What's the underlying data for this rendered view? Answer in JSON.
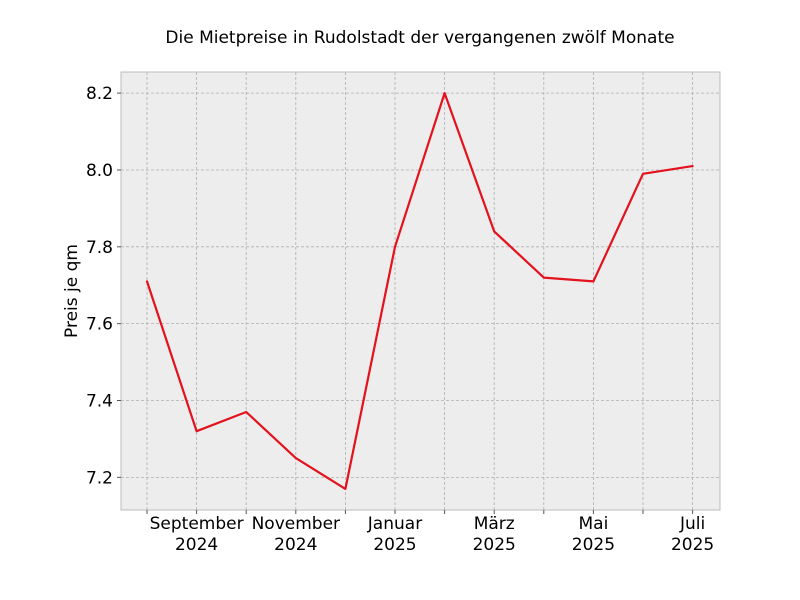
{
  "chart_data": {
    "type": "line",
    "title": "Die Mietpreise in Rudolstadt der vergangenen zwölf Monate",
    "xlabel": "",
    "ylabel": "Preis je qm",
    "x": [
      "2024-08",
      "2024-09",
      "2024-10",
      "2024-11",
      "2024-12",
      "2025-01",
      "2025-02",
      "2025-03",
      "2025-04",
      "2025-05",
      "2025-06",
      "2025-07"
    ],
    "series": [
      {
        "color": "#e3121d",
        "values": [
          7.71,
          7.32,
          7.37,
          7.25,
          7.17,
          7.8,
          8.2,
          7.84,
          7.72,
          7.71,
          7.99,
          8.01
        ]
      }
    ],
    "x_tick_labels": [
      {
        "x": "2024-09",
        "line1": "September",
        "line2": "2024"
      },
      {
        "x": "2024-11",
        "line1": "November",
        "line2": "2024"
      },
      {
        "x": "2025-01",
        "line1": "Januar",
        "line2": "2025"
      },
      {
        "x": "2025-03",
        "line1": "März",
        "line2": "2025"
      },
      {
        "x": "2025-05",
        "line1": "Mai",
        "line2": "2025"
      },
      {
        "x": "2025-07",
        "line1": "Juli",
        "line2": "2025"
      }
    ],
    "y_ticks": [
      7.2,
      7.4,
      7.6,
      7.8,
      8.0,
      8.2
    ],
    "ylim": [
      7.115,
      8.255
    ],
    "grid": true,
    "legend": "none",
    "background": "#ededed"
  }
}
